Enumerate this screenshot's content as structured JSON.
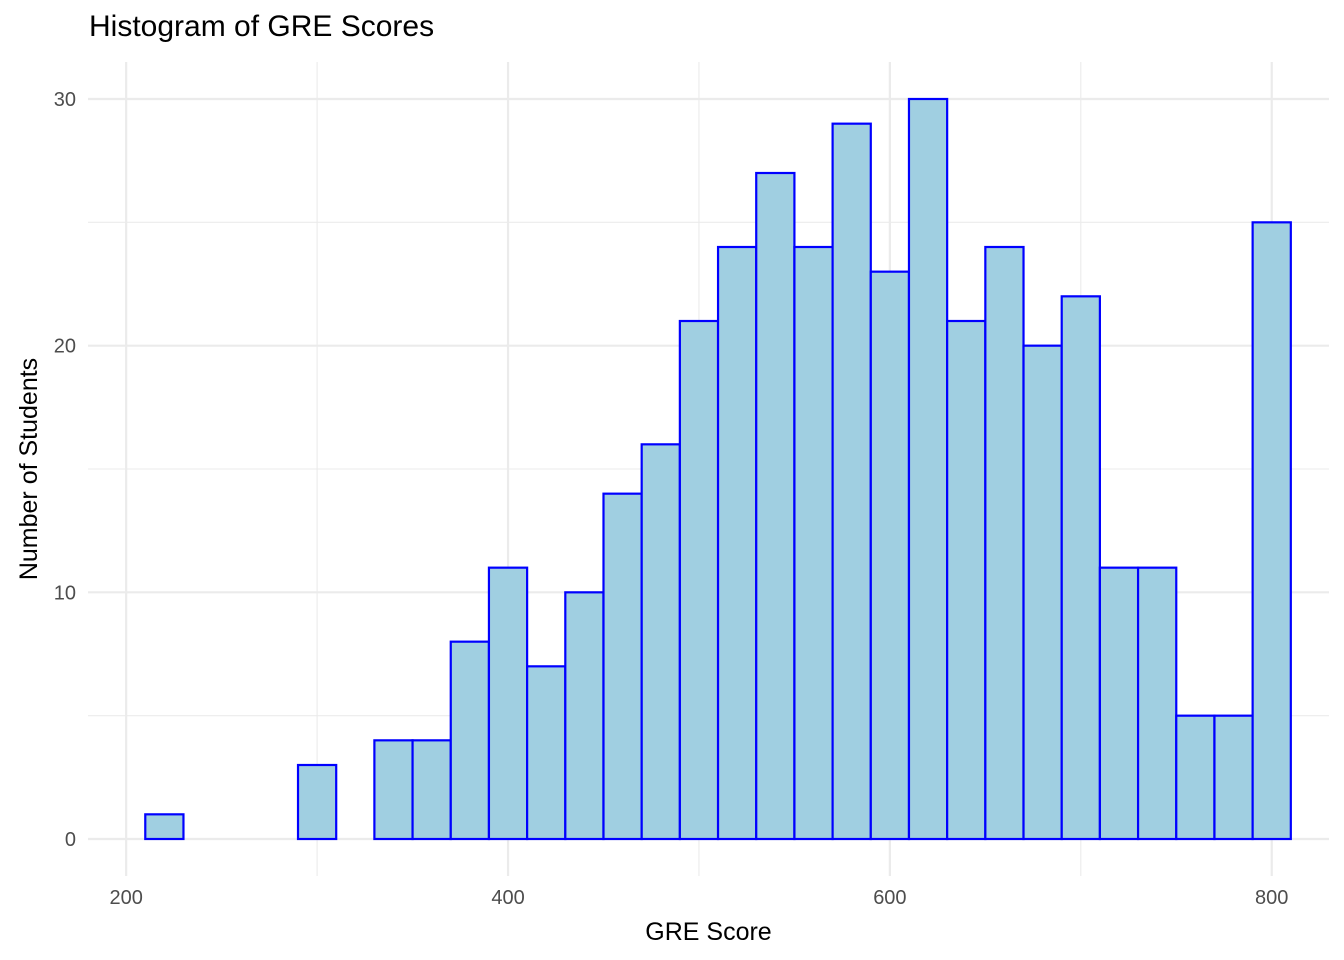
{
  "chart_data": {
    "type": "bar",
    "title": "Histogram of GRE Scores",
    "xlabel": "GRE Score",
    "ylabel": "Number of Students",
    "bin_width": 20,
    "bins": [
      {
        "x0": 210,
        "x1": 230,
        "count": 1
      },
      {
        "x0": 230,
        "x1": 250,
        "count": 0
      },
      {
        "x0": 250,
        "x1": 270,
        "count": 0
      },
      {
        "x0": 270,
        "x1": 290,
        "count": 0
      },
      {
        "x0": 290,
        "x1": 310,
        "count": 3
      },
      {
        "x0": 310,
        "x1": 330,
        "count": 0
      },
      {
        "x0": 330,
        "x1": 350,
        "count": 4
      },
      {
        "x0": 350,
        "x1": 370,
        "count": 4
      },
      {
        "x0": 370,
        "x1": 390,
        "count": 8
      },
      {
        "x0": 390,
        "x1": 410,
        "count": 11
      },
      {
        "x0": 410,
        "x1": 430,
        "count": 7
      },
      {
        "x0": 430,
        "x1": 450,
        "count": 10
      },
      {
        "x0": 450,
        "x1": 470,
        "count": 14
      },
      {
        "x0": 470,
        "x1": 490,
        "count": 16
      },
      {
        "x0": 490,
        "x1": 510,
        "count": 21
      },
      {
        "x0": 510,
        "x1": 530,
        "count": 24
      },
      {
        "x0": 530,
        "x1": 550,
        "count": 27
      },
      {
        "x0": 550,
        "x1": 570,
        "count": 24
      },
      {
        "x0": 570,
        "x1": 590,
        "count": 29
      },
      {
        "x0": 590,
        "x1": 610,
        "count": 23
      },
      {
        "x0": 610,
        "x1": 630,
        "count": 30
      },
      {
        "x0": 630,
        "x1": 650,
        "count": 21
      },
      {
        "x0": 650,
        "x1": 670,
        "count": 24
      },
      {
        "x0": 670,
        "x1": 690,
        "count": 20
      },
      {
        "x0": 690,
        "x1": 710,
        "count": 22
      },
      {
        "x0": 710,
        "x1": 730,
        "count": 11
      },
      {
        "x0": 730,
        "x1": 750,
        "count": 11
      },
      {
        "x0": 750,
        "x1": 770,
        "count": 5
      },
      {
        "x0": 770,
        "x1": 790,
        "count": 5
      },
      {
        "x0": 790,
        "x1": 810,
        "count": 25
      }
    ],
    "xlim": [
      180,
      830
    ],
    "ylim": [
      -1.5,
      31.5
    ],
    "x_ticks": [
      200,
      400,
      600,
      800
    ],
    "x_tick_labels": [
      "200",
      "400",
      "600",
      "800"
    ],
    "x_minor_ticks": [
      300,
      500,
      700
    ],
    "y_ticks": [
      0,
      10,
      20,
      30
    ],
    "y_tick_labels": [
      "0",
      "10",
      "20",
      "30"
    ],
    "y_minor_ticks": [
      5,
      15,
      25
    ],
    "grid": true,
    "legend": "none",
    "bar_fill": "#a0cfe1",
    "bar_stroke": "#0000ff",
    "grid_color": "#ebebeb",
    "tick_label_color": "#4d4d4d"
  }
}
